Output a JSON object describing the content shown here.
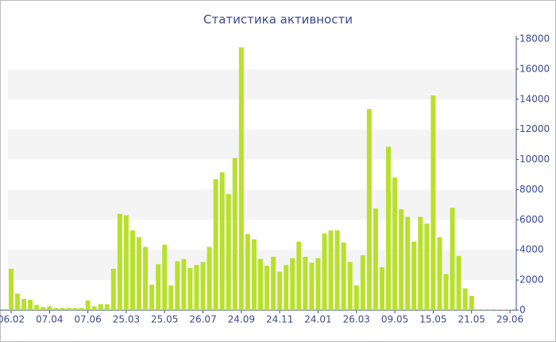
{
  "chart_data": {
    "type": "bar",
    "title": "Статистика активности",
    "categories": [
      "06.02",
      null,
      null,
      null,
      null,
      null,
      "07.04",
      null,
      null,
      null,
      null,
      null,
      "07.06",
      null,
      null,
      null,
      null,
      null,
      "25.03",
      null,
      null,
      null,
      null,
      null,
      "25.05",
      null,
      null,
      null,
      null,
      null,
      "26.07",
      null,
      null,
      null,
      null,
      null,
      "24.09",
      null,
      null,
      null,
      null,
      null,
      "24.11",
      null,
      null,
      null,
      null,
      null,
      "24.01",
      null,
      null,
      null,
      null,
      null,
      "26.03",
      null,
      null,
      null,
      null,
      null,
      "09.05",
      null,
      null,
      null,
      null,
      null,
      "15.05",
      null,
      null,
      null,
      null,
      null,
      "21.05",
      null,
      null,
      null,
      null,
      null,
      "29.06"
    ],
    "values": [
      2750,
      1100,
      750,
      700,
      350,
      200,
      250,
      150,
      150,
      150,
      150,
      150,
      650,
      250,
      400,
      400,
      2750,
      6400,
      6300,
      5300,
      4850,
      4200,
      1700,
      3050,
      4350,
      1650,
      3250,
      3400,
      2800,
      3000,
      3200,
      4200,
      8700,
      9150,
      7700,
      10100,
      17450,
      5050,
      4700,
      3400,
      2950,
      3550,
      2550,
      3000,
      3450,
      4550,
      3550,
      3150,
      3450,
      5100,
      5300,
      5300,
      4500,
      3200,
      1650,
      3650,
      13350,
      6750,
      2850,
      10850,
      8800,
      6700,
      6200,
      4550,
      6200,
      5750,
      14250,
      4850,
      2400,
      6800,
      3600,
      1450,
      950,
      50,
      50,
      50,
      50,
      50,
      50
    ],
    "color": "#b8e02c",
    "ylim": [
      0,
      18000
    ],
    "yticks": [
      0,
      2000,
      4000,
      6000,
      8000,
      10000,
      12000,
      14000,
      16000,
      18000
    ],
    "grid": true
  }
}
